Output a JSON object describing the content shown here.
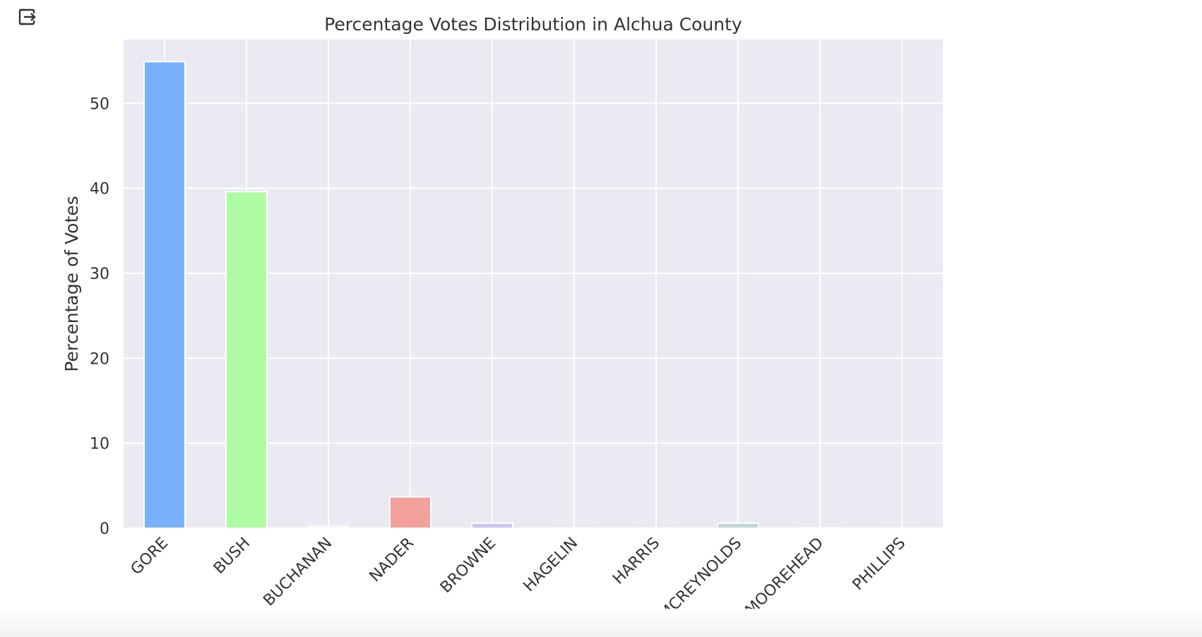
{
  "chart_data": {
    "type": "bar",
    "title": "Percentage Votes Distribution in Alchua County",
    "xlabel": "",
    "ylabel": "Percentage of Votes",
    "categories": [
      "GORE",
      "BUSH",
      "BUCHANAN",
      "NADER",
      "BROWNE",
      "HAGELIN",
      "HARRIS",
      "MCREYNOLDS",
      "MOOREHEAD",
      "PHILLIPS"
    ],
    "values": [
      54.9,
      39.6,
      0.2,
      3.7,
      0.6,
      0.04,
      0.02,
      0.6,
      0.05,
      0.01
    ],
    "colors": [
      "#7ab1fb",
      "#aefca1",
      "#fde4d5",
      "#f2a19c",
      "#c9c4f2",
      "#e9e3f5",
      "#e9e8ef",
      "#c5d4d3",
      "#e6e6ef",
      "#e6e6ef"
    ],
    "ylim": [
      0,
      57.5
    ],
    "yticks": [
      0,
      10,
      20,
      30,
      40,
      50
    ],
    "grid": true,
    "plot_background": "#eaeaf2",
    "grid_color": "#ffffff",
    "text_color": "#333333",
    "legend": "none"
  },
  "toolbar": {
    "exit_icon": "exit-to-app-icon"
  }
}
